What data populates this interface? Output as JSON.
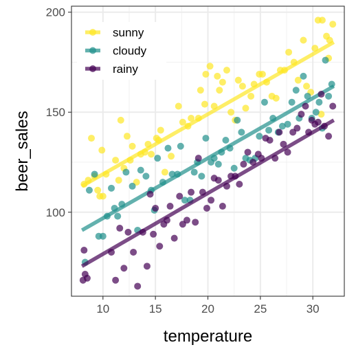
{
  "chart_data": {
    "type": "scatter",
    "xlabel": "temperature",
    "ylabel": "beer_sales",
    "xlim": [
      7,
      33
    ],
    "ylim": [
      58,
      203
    ],
    "x_ticks": [
      10,
      15,
      20,
      25,
      30
    ],
    "y_ticks": [
      100,
      150,
      200
    ],
    "x_tick_labels": [
      "10",
      "15",
      "20",
      "25",
      "30"
    ],
    "y_tick_labels": [
      "100",
      "150",
      "200"
    ],
    "grid": true,
    "legend_position": "top-left",
    "series": [
      {
        "name": "sunny",
        "color": "#FDE725",
        "trend": {
          "x": [
            8,
            32
          ],
          "y": [
            113,
            185
          ]
        },
        "points": [
          [
            8.2,
            114
          ],
          [
            8.6,
            116
          ],
          [
            8.9,
            137
          ],
          [
            9.2,
            118
          ],
          [
            9.5,
            111
          ],
          [
            9.7,
            108
          ],
          [
            9.9,
            131
          ],
          [
            10.0,
            108
          ],
          [
            10.3,
            119
          ],
          [
            11.2,
            126
          ],
          [
            11.5,
            116
          ],
          [
            11.7,
            146
          ],
          [
            12.0,
            122
          ],
          [
            12.3,
            138
          ],
          [
            12.6,
            126
          ],
          [
            12.8,
            133
          ],
          [
            13.2,
            115
          ],
          [
            13.6,
            129
          ],
          [
            14.0,
            130
          ],
          [
            14.3,
            134
          ],
          [
            14.6,
            129
          ],
          [
            15.1,
            137
          ],
          [
            15.3,
            136
          ],
          [
            15.5,
            141
          ],
          [
            15.9,
            120
          ],
          [
            16.5,
            128
          ],
          [
            17.2,
            153
          ],
          [
            17.6,
            145
          ],
          [
            18.1,
            143
          ],
          [
            18.4,
            147
          ],
          [
            19.1,
            147
          ],
          [
            19.3,
            161
          ],
          [
            19.7,
            154
          ],
          [
            19.8,
            169
          ],
          [
            20.2,
            173
          ],
          [
            20.6,
            153
          ],
          [
            20.9,
            168
          ],
          [
            21.1,
            161
          ],
          [
            21.4,
            165
          ],
          [
            21.8,
            171
          ],
          [
            22.2,
            150
          ],
          [
            22.6,
            146
          ],
          [
            22.9,
            166
          ],
          [
            23.3,
            163
          ],
          [
            23.6,
            152
          ],
          [
            24.1,
            158
          ],
          [
            24.4,
            164
          ],
          [
            24.9,
            169
          ],
          [
            25.2,
            169
          ],
          [
            25.6,
            165
          ],
          [
            26.1,
            158
          ],
          [
            26.5,
            157
          ],
          [
            26.9,
            171
          ],
          [
            27.3,
            171
          ],
          [
            27.7,
            180
          ],
          [
            28.2,
            175
          ],
          [
            28.6,
            166
          ],
          [
            29.1,
            186
          ],
          [
            29.4,
            163
          ],
          [
            29.8,
            160
          ],
          [
            30.2,
            182
          ],
          [
            30.5,
            196
          ],
          [
            30.9,
            196
          ],
          [
            31.3,
            188
          ],
          [
            31.6,
            186
          ],
          [
            31.9,
            194
          ],
          [
            31.5,
            177
          ],
          [
            30.8,
            149
          ]
        ]
      },
      {
        "name": "cloudy",
        "color": "#21908C",
        "trend": {
          "x": [
            8,
            32
          ],
          "y": [
            91,
            163
          ]
        },
        "points": [
          [
            8.3,
            75
          ],
          [
            8.7,
            111
          ],
          [
            9.2,
            119
          ],
          [
            9.6,
            88
          ],
          [
            10.0,
            88
          ],
          [
            10.4,
            98
          ],
          [
            10.8,
            112
          ],
          [
            11.1,
            102
          ],
          [
            11.4,
            98
          ],
          [
            11.8,
            104
          ],
          [
            12.2,
            120
          ],
          [
            12.8,
            113
          ],
          [
            13.3,
            91
          ],
          [
            13.6,
            121
          ],
          [
            14.1,
            118
          ],
          [
            14.6,
            111
          ],
          [
            14.9,
            101
          ],
          [
            15.2,
            127
          ],
          [
            15.7,
            115
          ],
          [
            16.2,
            132
          ],
          [
            16.6,
            119
          ],
          [
            17.1,
            119
          ],
          [
            17.4,
            133
          ],
          [
            17.8,
            106
          ],
          [
            18.3,
            106
          ],
          [
            18.7,
            120
          ],
          [
            19.0,
            125
          ],
          [
            19.4,
            118
          ],
          [
            19.8,
            137
          ],
          [
            20.3,
            125
          ],
          [
            20.6,
            127
          ],
          [
            21.0,
            124
          ],
          [
            21.3,
            130
          ],
          [
            21.7,
            136
          ],
          [
            22.1,
            132
          ],
          [
            22.5,
            122
          ],
          [
            22.8,
            146
          ],
          [
            23.2,
            140
          ],
          [
            23.6,
            127
          ],
          [
            24.0,
            126
          ],
          [
            24.5,
            127
          ],
          [
            24.9,
            138
          ],
          [
            25.4,
            155
          ],
          [
            25.8,
            141
          ],
          [
            26.2,
            147
          ],
          [
            26.7,
            140
          ],
          [
            27.1,
            143
          ],
          [
            27.6,
            144
          ],
          [
            28.0,
            155
          ],
          [
            28.4,
            161
          ],
          [
            28.7,
            147
          ],
          [
            29.1,
            168
          ],
          [
            29.5,
            158
          ],
          [
            29.9,
            147
          ],
          [
            30.3,
            150
          ],
          [
            30.6,
            155
          ],
          [
            30.9,
            142
          ],
          [
            31.2,
            176
          ],
          [
            31.5,
            158
          ],
          [
            31.8,
            164
          ]
        ]
      },
      {
        "name": "rainy",
        "color": "#440154",
        "trend": {
          "x": [
            8,
            32
          ],
          "y": [
            73,
            146
          ]
        },
        "points": [
          [
            8.1,
            66
          ],
          [
            8.3,
            69
          ],
          [
            8.5,
            67
          ],
          [
            8.2,
            81
          ],
          [
            10.8,
            80
          ],
          [
            11.2,
            66
          ],
          [
            11.6,
            92
          ],
          [
            12.0,
            72
          ],
          [
            12.4,
            90
          ],
          [
            12.9,
            80
          ],
          [
            13.3,
            63
          ],
          [
            13.8,
            90
          ],
          [
            14.2,
            73
          ],
          [
            14.5,
            109
          ],
          [
            14.8,
            89
          ],
          [
            15.0,
            102
          ],
          [
            15.4,
            83
          ],
          [
            15.8,
            94
          ],
          [
            16.1,
            96
          ],
          [
            16.4,
            103
          ],
          [
            16.8,
            87
          ],
          [
            17.3,
            108
          ],
          [
            17.6,
            94
          ],
          [
            18.0,
            96
          ],
          [
            18.4,
            110
          ],
          [
            18.8,
            95
          ],
          [
            19.1,
            127
          ],
          [
            19.5,
            110
          ],
          [
            19.9,
            102
          ],
          [
            20.3,
            106
          ],
          [
            20.6,
            117
          ],
          [
            21.0,
            116
          ],
          [
            21.4,
            103
          ],
          [
            21.8,
            113
          ],
          [
            22.2,
            118
          ],
          [
            22.6,
            118
          ],
          [
            23.0,
            114
          ],
          [
            23.4,
            124
          ],
          [
            23.8,
            130
          ],
          [
            24.3,
            125
          ],
          [
            24.8,
            129
          ],
          [
            25.1,
            127
          ],
          [
            25.5,
            137
          ],
          [
            25.9,
            136
          ],
          [
            26.4,
            127
          ],
          [
            26.8,
            140
          ],
          [
            27.2,
            134
          ],
          [
            27.6,
            130
          ],
          [
            28.1,
            140
          ],
          [
            28.5,
            142
          ],
          [
            28.9,
            149
          ],
          [
            29.3,
            153
          ],
          [
            29.6,
            140
          ],
          [
            29.9,
            146
          ],
          [
            30.2,
            144
          ],
          [
            30.5,
            145
          ],
          [
            30.8,
            159
          ],
          [
            31.1,
            143
          ],
          [
            31.5,
            138
          ],
          [
            31.9,
            153
          ]
        ]
      }
    ]
  }
}
